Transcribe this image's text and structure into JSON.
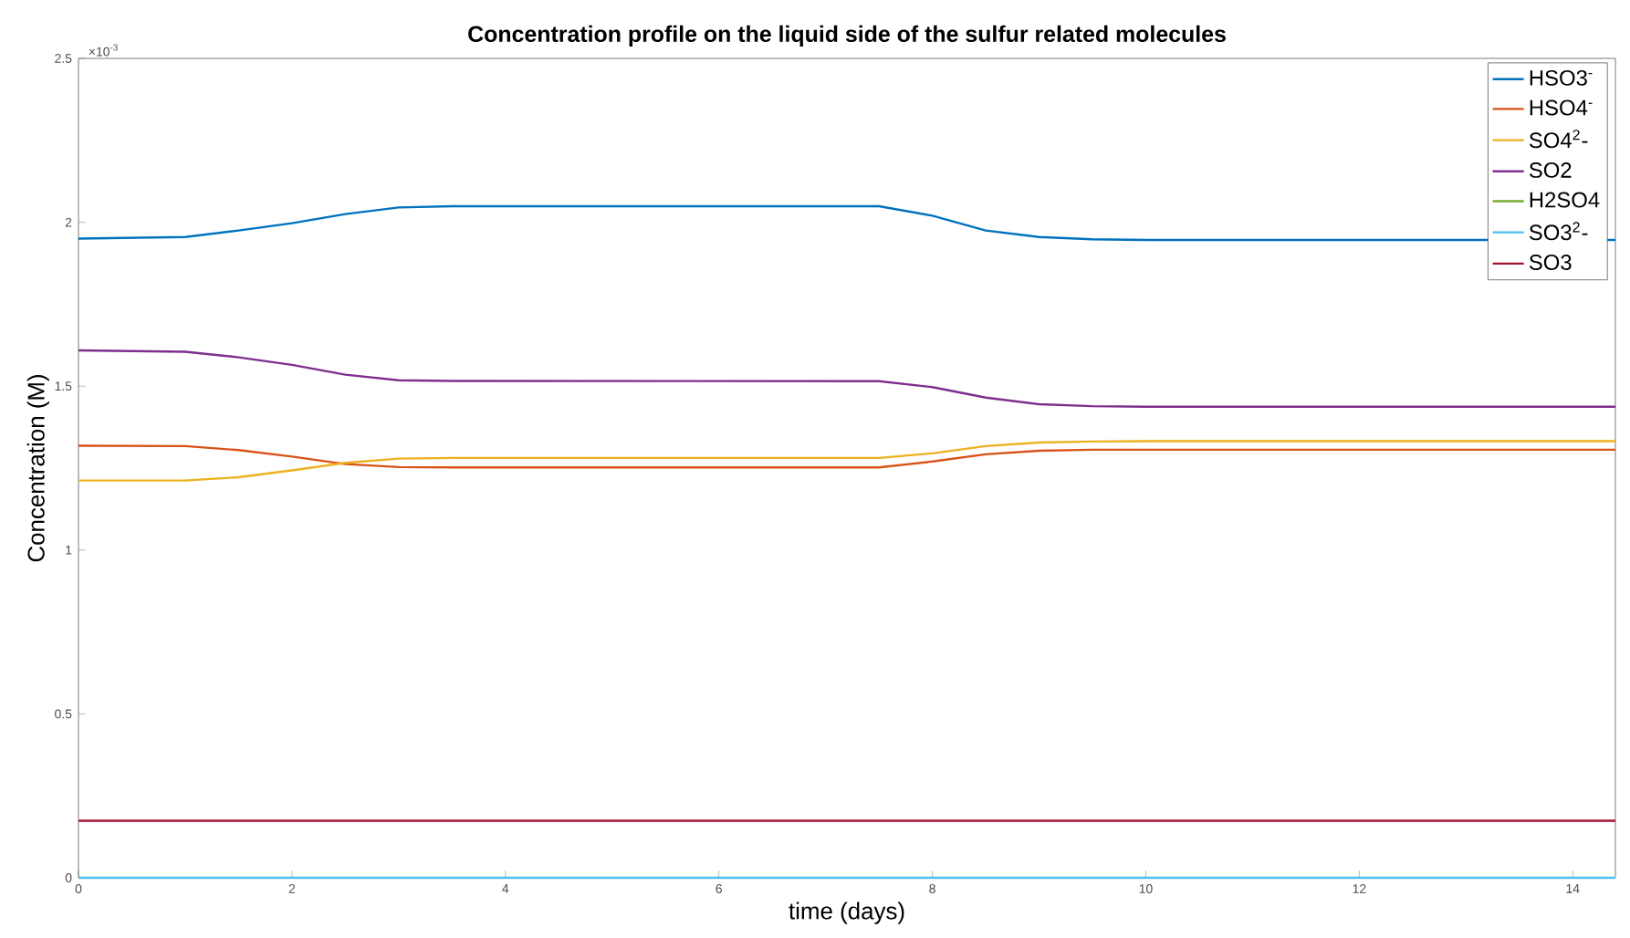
{
  "chart_data": {
    "type": "line",
    "title": "Concentration profile on the liquid side of the sulfur related molecules",
    "xlabel": "time (days)",
    "ylabel": "Concentration (M)",
    "x": [
      0,
      1,
      1.5,
      2,
      2.5,
      3,
      3.5,
      7.5,
      8,
      8.5,
      9,
      9.5,
      10,
      14.4
    ],
    "series": [
      {
        "name": "HSO3$^{-}$",
        "color": "#0072bd",
        "values": [
          1.95,
          1.955,
          1.975,
          1.997,
          2.025,
          2.045,
          2.049,
          2.049,
          2.02,
          1.975,
          1.955,
          1.948,
          1.946,
          1.946
        ]
      },
      {
        "name": "HSO4$^{-}$",
        "color": "#d95319",
        "values": [
          1.318,
          1.317,
          1.305,
          1.285,
          1.262,
          1.253,
          1.252,
          1.252,
          1.27,
          1.292,
          1.303,
          1.306,
          1.306,
          1.306
        ]
      },
      {
        "name": "SO4$^{2}$-",
        "color": "#edb120",
        "values": [
          1.212,
          1.212,
          1.222,
          1.243,
          1.266,
          1.279,
          1.281,
          1.281,
          1.295,
          1.317,
          1.328,
          1.331,
          1.332,
          1.332
        ]
      },
      {
        "name": "SO2",
        "color": "#7e2f8e",
        "values": [
          1.609,
          1.605,
          1.588,
          1.565,
          1.535,
          1.518,
          1.516,
          1.515,
          1.497,
          1.465,
          1.445,
          1.439,
          1.437,
          1.437
        ]
      },
      {
        "name": "H2SO4",
        "color": "#77ac30",
        "values": [
          null,
          null,
          null,
          null,
          null,
          null,
          null,
          null,
          null,
          null,
          null,
          null,
          null,
          null
        ]
      },
      {
        "name": "SO3$^{2}$-",
        "color": "#4dbeee",
        "values": [
          0,
          0,
          0,
          0,
          0,
          0,
          0,
          0,
          0,
          0,
          0,
          0,
          0,
          0
        ]
      },
      {
        "name": "SO3",
        "color": "#a2142f",
        "values": [
          0.174,
          0.174,
          0.174,
          0.174,
          0.174,
          0.174,
          0.174,
          0.174,
          0.174,
          0.174,
          0.174,
          0.174,
          0.174,
          0.174
        ]
      }
    ],
    "xlim": [
      0,
      14.4
    ],
    "xticks": [
      0,
      2,
      4,
      6,
      8,
      10,
      12,
      14
    ],
    "ylim": [
      0,
      2.5
    ],
    "yticks": [
      0,
      0.5,
      1,
      1.5,
      2,
      2.5
    ],
    "annotations": [
      "×10$^{-3}$"
    ],
    "legend": "top right",
    "grid": false,
    "marker": "none",
    "line_style": "solid"
  }
}
